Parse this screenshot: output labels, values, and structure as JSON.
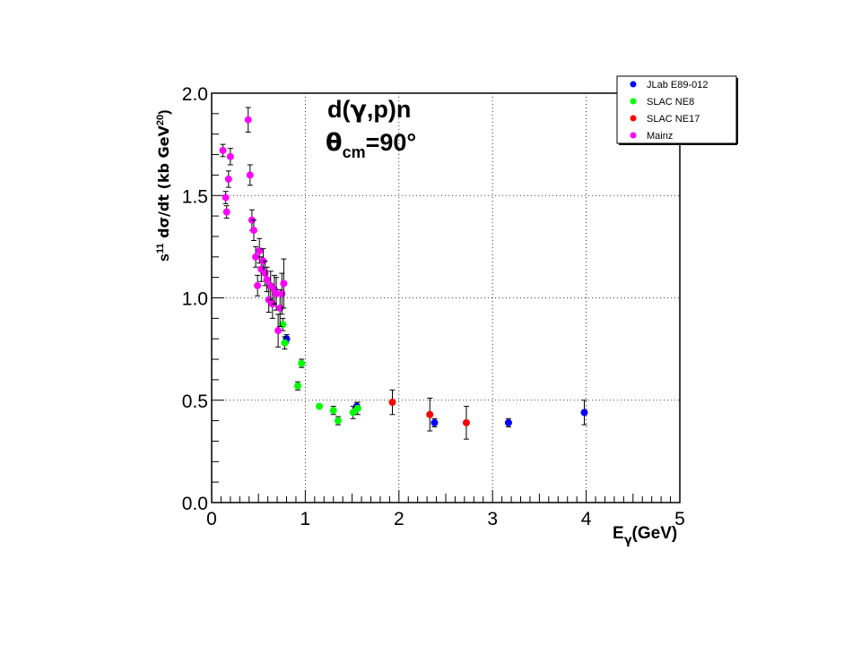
{
  "chart_data": {
    "type": "scatter",
    "xlabel": "E",
    "xlabel_sub": "γ",
    "xlabel_unit": "(GeV)",
    "ylabel_parts": {
      "s": "s",
      "sup": "11",
      "body": " dσ/dt (kb GeV",
      "sup2": "20",
      "end": ")"
    },
    "xlim": [
      0,
      5
    ],
    "ylim": [
      0.0,
      2.0
    ],
    "x_ticks": [
      0,
      1,
      2,
      3,
      4,
      5
    ],
    "x_tick_labels": [
      "0",
      "1",
      "2",
      "3",
      "4",
      "5"
    ],
    "y_ticks": [
      0.0,
      0.5,
      1.0,
      1.5,
      2.0
    ],
    "y_tick_labels": [
      "0.0",
      "0.5",
      "1.0",
      "1.5",
      "2.0"
    ],
    "grid": true,
    "legend_position": "top-right",
    "annotations": {
      "reaction": {
        "pre": "d(",
        "greek": "γ",
        "post": ",p)n"
      },
      "angle": {
        "greek": "θ",
        "sub": "cm",
        "post": "=90°"
      }
    },
    "series": [
      {
        "name": "JLab E89-012",
        "color": "#0000ff",
        "points": [
          {
            "x": 0.8,
            "y": 0.8,
            "err": 0.02
          },
          {
            "x": 1.55,
            "y": 0.47,
            "err": 0.02
          },
          {
            "x": 2.38,
            "y": 0.39,
            "err": 0.02
          },
          {
            "x": 3.17,
            "y": 0.39,
            "err": 0.02
          },
          {
            "x": 3.98,
            "y": 0.44,
            "err": 0.06
          }
        ]
      },
      {
        "name": "SLAC NE8",
        "color": "#00ff00",
        "points": [
          {
            "x": 0.76,
            "y": 0.87,
            "err": 0.03
          },
          {
            "x": 0.78,
            "y": 0.78,
            "err": 0.03
          },
          {
            "x": 0.92,
            "y": 0.57,
            "err": 0.02
          },
          {
            "x": 0.96,
            "y": 0.68,
            "err": 0.02
          },
          {
            "x": 1.15,
            "y": 0.47,
            "err": 0.01
          },
          {
            "x": 1.3,
            "y": 0.45,
            "err": 0.02
          },
          {
            "x": 1.35,
            "y": 0.4,
            "err": 0.02
          },
          {
            "x": 1.51,
            "y": 0.44,
            "err": 0.03
          },
          {
            "x": 1.56,
            "y": 0.46,
            "err": 0.03
          }
        ]
      },
      {
        "name": "SLAC NE17",
        "color": "#ff0000",
        "points": [
          {
            "x": 1.93,
            "y": 0.49,
            "err": 0.06
          },
          {
            "x": 2.33,
            "y": 0.43,
            "err": 0.08
          },
          {
            "x": 2.72,
            "y": 0.39,
            "err": 0.08
          }
        ]
      },
      {
        "name": "Mainz",
        "color": "#ff00ff",
        "points": [
          {
            "x": 0.12,
            "y": 1.72,
            "err": 0.03
          },
          {
            "x": 0.15,
            "y": 1.49,
            "err": 0.03
          },
          {
            "x": 0.16,
            "y": 1.42,
            "err": 0.03
          },
          {
            "x": 0.18,
            "y": 1.58,
            "err": 0.04
          },
          {
            "x": 0.2,
            "y": 1.69,
            "err": 0.04
          },
          {
            "x": 0.39,
            "y": 1.87,
            "err": 0.06
          },
          {
            "x": 0.41,
            "y": 1.6,
            "err": 0.05
          },
          {
            "x": 0.43,
            "y": 1.38,
            "err": 0.05
          },
          {
            "x": 0.45,
            "y": 1.33,
            "err": 0.05
          },
          {
            "x": 0.47,
            "y": 1.2,
            "err": 0.05
          },
          {
            "x": 0.49,
            "y": 1.06,
            "err": 0.05
          },
          {
            "x": 0.51,
            "y": 1.23,
            "err": 0.06
          },
          {
            "x": 0.53,
            "y": 1.14,
            "err": 0.06
          },
          {
            "x": 0.55,
            "y": 1.18,
            "err": 0.06
          },
          {
            "x": 0.57,
            "y": 1.12,
            "err": 0.06
          },
          {
            "x": 0.59,
            "y": 1.09,
            "err": 0.06
          },
          {
            "x": 0.61,
            "y": 0.99,
            "err": 0.06
          },
          {
            "x": 0.63,
            "y": 1.06,
            "err": 0.07
          },
          {
            "x": 0.65,
            "y": 0.97,
            "err": 0.07
          },
          {
            "x": 0.67,
            "y": 1.04,
            "err": 0.07
          },
          {
            "x": 0.69,
            "y": 1.02,
            "err": 0.08
          },
          {
            "x": 0.71,
            "y": 0.84,
            "err": 0.08
          },
          {
            "x": 0.73,
            "y": 0.95,
            "err": 0.09
          },
          {
            "x": 0.75,
            "y": 1.02,
            "err": 0.1
          },
          {
            "x": 0.77,
            "y": 1.07,
            "err": 0.12
          }
        ]
      }
    ]
  }
}
